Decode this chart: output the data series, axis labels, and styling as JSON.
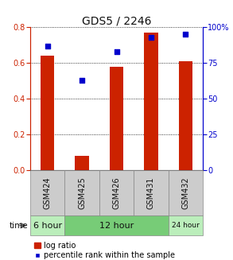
{
  "title": "GDS5 / 2246",
  "samples": [
    "GSM424",
    "GSM425",
    "GSM426",
    "GSM431",
    "GSM432"
  ],
  "log_ratio": [
    0.64,
    0.08,
    0.58,
    0.77,
    0.61
  ],
  "percentile_rank": [
    87,
    63,
    83,
    93,
    95
  ],
  "left_ylim": [
    0,
    0.8
  ],
  "right_ylim": [
    0,
    100
  ],
  "left_yticks": [
    0,
    0.2,
    0.4,
    0.6,
    0.8
  ],
  "right_yticks": [
    0,
    25,
    50,
    75,
    100
  ],
  "right_yticklabels": [
    "0",
    "25",
    "50",
    "75",
    "100%"
  ],
  "bar_color": "#cc2200",
  "dot_color": "#0000cc",
  "bar_width": 0.4,
  "group_colors": [
    "#bbeebb",
    "#77cc77",
    "#bbeebb"
  ],
  "time_groups": [
    {
      "label": "6 hour",
      "count": 1
    },
    {
      "label": "12 hour",
      "count": 3
    },
    {
      "label": "24 hour",
      "count": 1
    }
  ],
  "left_axis_color": "#cc2200",
  "right_axis_color": "#0000cc",
  "title_fontsize": 10,
  "tick_fontsize": 7,
  "label_fontsize": 7,
  "legend_fontsize": 7
}
